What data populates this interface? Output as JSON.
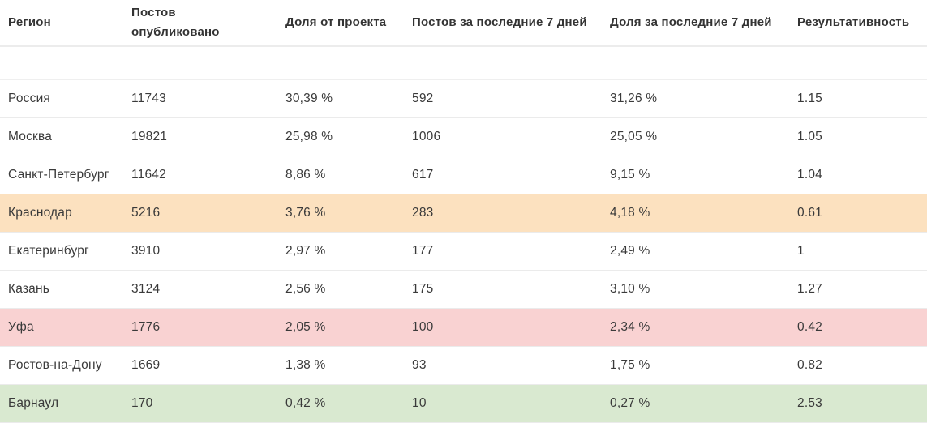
{
  "table": {
    "columns": [
      {
        "label": "Регион"
      },
      {
        "label": "Постов опубликовано"
      },
      {
        "label": "Доля от проекта"
      },
      {
        "label": "Постов за последние 7 дней"
      },
      {
        "label": "Доля за последние 7 дней"
      },
      {
        "label": "Результативность"
      }
    ],
    "rows": [
      {
        "region": "Россия",
        "posts_published": "11743",
        "project_share": "30,39 %",
        "posts_7d": "592",
        "share_7d": "31,26 %",
        "effectiveness": "1.15",
        "highlight": "none"
      },
      {
        "region": "Москва",
        "posts_published": "19821",
        "project_share": "25,98 %",
        "posts_7d": "1006",
        "share_7d": "25,05 %",
        "effectiveness": "1.05",
        "highlight": "none"
      },
      {
        "region": "Санкт-Петербург",
        "posts_published": "11642",
        "project_share": "8,86 %",
        "posts_7d": "617",
        "share_7d": "9,15 %",
        "effectiveness": "1.04",
        "highlight": "none"
      },
      {
        "region": "Краснодар",
        "posts_published": "5216",
        "project_share": "3,76 %",
        "posts_7d": "283",
        "share_7d": "4,18 %",
        "effectiveness": "0.61",
        "highlight": "orange"
      },
      {
        "region": "Екатеринбург",
        "posts_published": "3910",
        "project_share": "2,97 %",
        "posts_7d": "177",
        "share_7d": "2,49 %",
        "effectiveness": "1",
        "highlight": "none"
      },
      {
        "region": "Казань",
        "posts_published": "3124",
        "project_share": "2,56 %",
        "posts_7d": "175",
        "share_7d": "3,10 %",
        "effectiveness": "1.27",
        "highlight": "none"
      },
      {
        "region": "Уфа",
        "posts_published": "1776",
        "project_share": "2,05 %",
        "posts_7d": "100",
        "share_7d": "2,34 %",
        "effectiveness": "0.42",
        "highlight": "pink"
      },
      {
        "region": "Ростов-на-Дону",
        "posts_published": "1669",
        "project_share": "1,38 %",
        "posts_7d": "93",
        "share_7d": "1,75 %",
        "effectiveness": "0.82",
        "highlight": "none"
      },
      {
        "region": "Барнаул",
        "posts_published": "170",
        "project_share": "0,42 %",
        "posts_7d": "10",
        "share_7d": "0,27 %",
        "effectiveness": "2.53",
        "highlight": "green"
      }
    ],
    "highlight_colors": {
      "none": "#ffffff",
      "orange": "#fce1bf",
      "pink": "#f9d2d2",
      "green": "#d9e9d0"
    },
    "style": {
      "text_color": "#3a3a3a",
      "header_text_color": "#333333",
      "border_color": "#ebebeb"
    }
  }
}
